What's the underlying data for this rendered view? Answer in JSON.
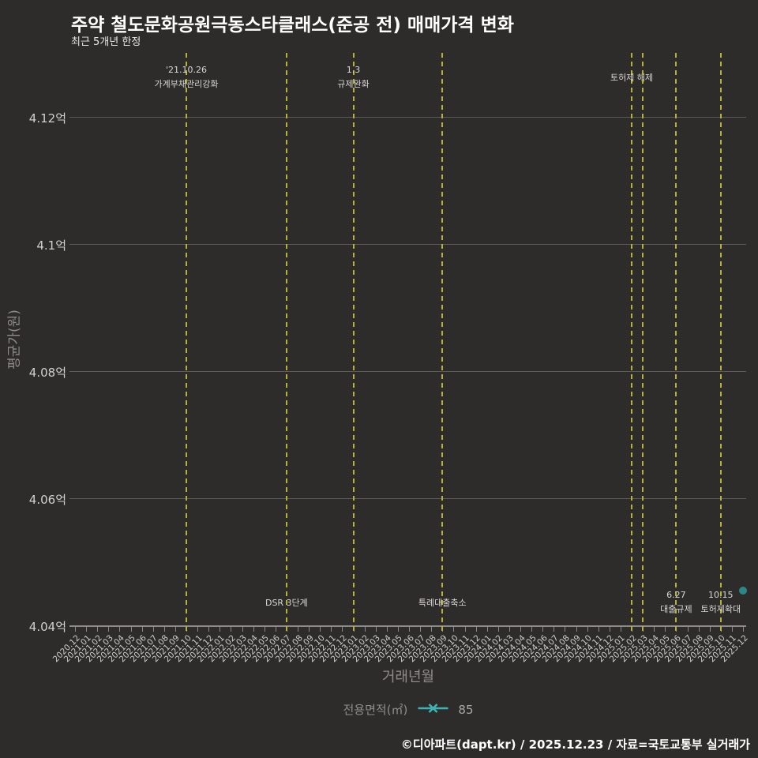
{
  "title": "주약 철도문화공원극동스타클래스(준공 전) 매매가격 변화",
  "subtitle": "최근 5개년 한정",
  "footer": "©디아파트(dapt.kr) / 2025.12.23 / 자료=국토교통부 실거래가",
  "legend": {
    "label": "전용면적(㎡)",
    "marker_icon": "teal-line-with-x-marker",
    "value": "85"
  },
  "colors": {
    "background": "#2e2b2b",
    "grid": "#5d5959",
    "axis_line": "#8f8b8b",
    "event_line_yellow": "#b5b335",
    "point_teal": "#2e8787",
    "legend_marker_teal": "#3cb4b4",
    "title_text": "#ffffff",
    "tick_label": "#cfcccc",
    "axis_title_gray": "#8f8b8b"
  },
  "chart_data": {
    "type": "scatter",
    "title": "주약 철도문화공원극동스타클래스(준공 전) 매매가격 변화",
    "subtitle": "최근 5개년 한정",
    "xlabel": "거래년월",
    "ylabel": "평균가(원)",
    "grid": "horizontal-only",
    "legend_position": "bottom-center",
    "ylim_eok": [
      4.039,
      4.131
    ],
    "yticks": [
      {
        "value": 4.04,
        "label": "4.04억"
      },
      {
        "value": 4.06,
        "label": "4.06억"
      },
      {
        "value": 4.08,
        "label": "4.08억"
      },
      {
        "value": 4.1,
        "label": "4.1억"
      },
      {
        "value": 4.12,
        "label": "4.12억"
      }
    ],
    "x_categories": [
      "2020.12",
      "2021.01",
      "2021.02",
      "2021.03",
      "2021.04",
      "2021.05",
      "2021.06",
      "2021.07",
      "2021.08",
      "2021.09",
      "2021.10",
      "2021.11",
      "2021.12",
      "2022.01",
      "2022.02",
      "2022.03",
      "2022.04",
      "2022.05",
      "2022.06",
      "2022.07",
      "2022.08",
      "2022.09",
      "2022.10",
      "2022.11",
      "2022.12",
      "2023.01",
      "2023.02",
      "2023.03",
      "2023.04",
      "2023.05",
      "2023.06",
      "2023.07",
      "2023.08",
      "2023.09",
      "2023.10",
      "2023.11",
      "2023.12",
      "2024.01",
      "2024.02",
      "2024.03",
      "2024.04",
      "2024.05",
      "2024.06",
      "2024.07",
      "2024.08",
      "2024.09",
      "2024.10",
      "2024.11",
      "2024.12",
      "2025.01",
      "2025.02",
      "2025.03",
      "2025.04",
      "2025.05",
      "2025.06",
      "2025.07",
      "2025.08",
      "2025.09",
      "2025.10",
      "2025.11",
      "2025.12"
    ],
    "series": [
      {
        "name": "85",
        "legend_group": "전용면적(㎡)",
        "marker": "circle",
        "color": "#2e8787",
        "points": [
          {
            "x": "2025.12",
            "y_eok": 4.0455
          }
        ]
      }
    ],
    "event_lines": [
      {
        "x": "2021.10",
        "labels": [
          "'21.10.26",
          "가계부채관리강화"
        ],
        "label_position": "top"
      },
      {
        "x": "2022.07",
        "labels": [
          "DSR 3단계"
        ],
        "label_position": "bottom"
      },
      {
        "x": "2023.01",
        "labels": [
          "1.3",
          "규제완화"
        ],
        "label_position": "top"
      },
      {
        "x": "2023.09",
        "labels": [
          "특례대출축소"
        ],
        "label_position": "bottom"
      },
      {
        "x": "2025.02",
        "labels": [
          "토허제 해제"
        ],
        "label_position": "top"
      },
      {
        "x": "2025.03",
        "labels": [],
        "label_position": "top"
      },
      {
        "x": "2025.06",
        "labels": [
          "6.27",
          "대출규제"
        ],
        "label_position": "bottom"
      },
      {
        "x": "2025.10",
        "labels": [
          "10.15",
          "토허제확대"
        ],
        "label_position": "bottom"
      }
    ]
  }
}
